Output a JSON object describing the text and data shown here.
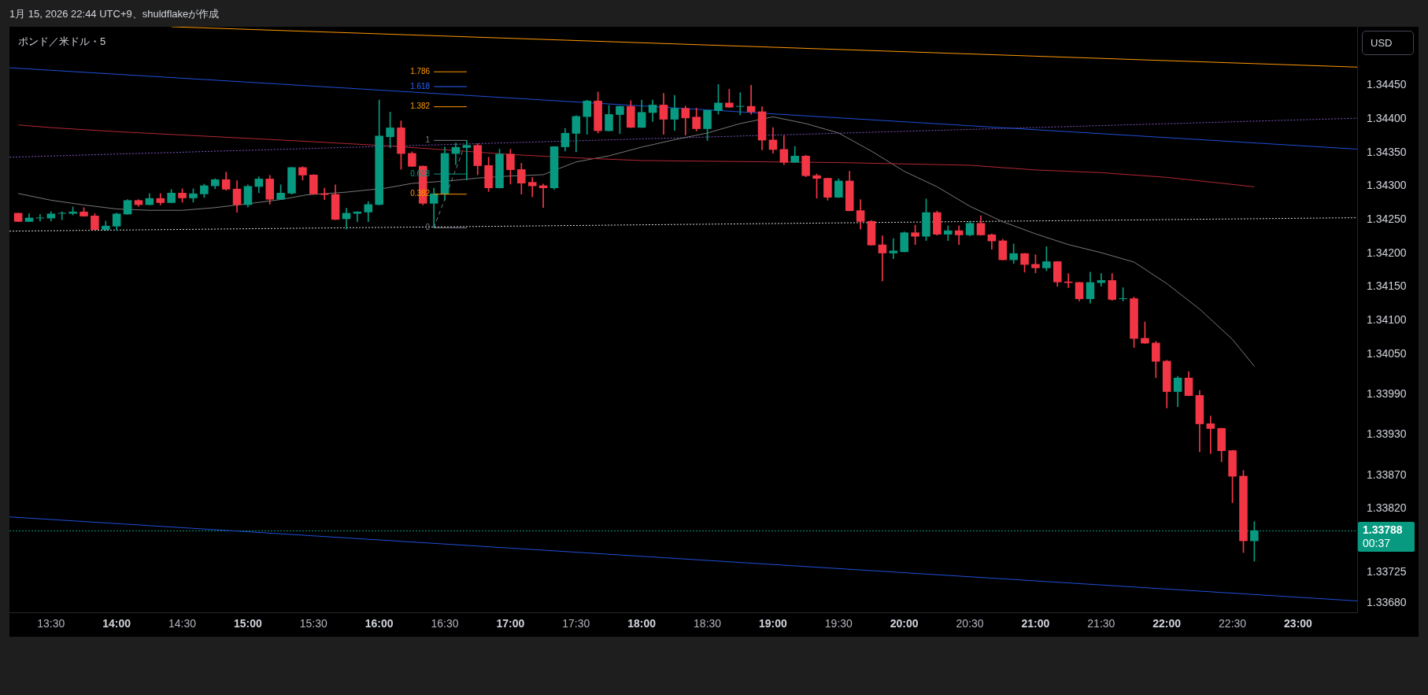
{
  "chart_data": {
    "type": "candlestick",
    "title": "ポンド／米ドル・5",
    "ylabel": "USD",
    "annotations": [
      "1月 15, 2026 22:44 UTC+9、shuldflakeが作成",
      "00:37"
    ],
    "xlim": [
      "2026-01-15T13:11",
      "2026-01-15T23:27"
    ],
    "ylim": [
      1.33666,
      1.34537
    ],
    "xticks": [
      {
        "value": "2026-01-15T13:30",
        "label": "13:30"
      },
      {
        "value": "2026-01-15T14:00",
        "label": "14:00"
      },
      {
        "value": "2026-01-15T14:30",
        "label": "14:30"
      },
      {
        "value": "2026-01-15T15:00",
        "label": "15:00"
      },
      {
        "value": "2026-01-15T15:30",
        "label": "15:30"
      },
      {
        "value": "2026-01-15T16:00",
        "label": "16:00"
      },
      {
        "value": "2026-01-15T16:30",
        "label": "16:30"
      },
      {
        "value": "2026-01-15T17:00",
        "label": "17:00"
      },
      {
        "value": "2026-01-15T17:30",
        "label": "17:30"
      },
      {
        "value": "2026-01-15T18:00",
        "label": "18:00"
      },
      {
        "value": "2026-01-15T18:30",
        "label": "18:30"
      },
      {
        "value": "2026-01-15T19:00",
        "label": "19:00"
      },
      {
        "value": "2026-01-15T19:30",
        "label": "19:30"
      },
      {
        "value": "2026-01-15T20:00",
        "label": "20:00"
      },
      {
        "value": "2026-01-15T20:30",
        "label": "20:30"
      },
      {
        "value": "2026-01-15T21:00",
        "label": "21:00"
      },
      {
        "value": "2026-01-15T21:30",
        "label": "21:30"
      },
      {
        "value": "2026-01-15T22:00",
        "label": "22:00"
      },
      {
        "value": "2026-01-15T22:30",
        "label": "22:30"
      },
      {
        "value": "2026-01-15T23:00",
        "label": "23:00"
      }
    ],
    "yticks": [
      {
        "value": 1.3445,
        "label": "1.34450"
      },
      {
        "value": 1.344,
        "label": "1.34400"
      },
      {
        "value": 1.3435,
        "label": "1.34350"
      },
      {
        "value": 1.343,
        "label": "1.34300"
      },
      {
        "value": 1.3425,
        "label": "1.34250"
      },
      {
        "value": 1.342,
        "label": "1.34200"
      },
      {
        "value": 1.3415,
        "label": "1.34150"
      },
      {
        "value": 1.341,
        "label": "1.34100"
      },
      {
        "value": 1.3405,
        "label": "1.34050"
      },
      {
        "value": 1.3399,
        "label": "1.33990"
      },
      {
        "value": 1.3393,
        "label": "1.33930"
      },
      {
        "value": 1.3387,
        "label": "1.33870"
      },
      {
        "value": 1.3382,
        "label": "1.33820"
      },
      {
        "value": 1.33725,
        "label": "1.33725"
      },
      {
        "value": 1.3368,
        "label": "1.33680"
      }
    ],
    "x": [
      "2026-01-15T13:15",
      "2026-01-15T13:20",
      "2026-01-15T13:25",
      "2026-01-15T13:30",
      "2026-01-15T13:35",
      "2026-01-15T13:40",
      "2026-01-15T13:45",
      "2026-01-15T13:50",
      "2026-01-15T13:55",
      "2026-01-15T14:00",
      "2026-01-15T14:05",
      "2026-01-15T14:10",
      "2026-01-15T14:15",
      "2026-01-15T14:20",
      "2026-01-15T14:25",
      "2026-01-15T14:30",
      "2026-01-15T14:35",
      "2026-01-15T14:40",
      "2026-01-15T14:45",
      "2026-01-15T14:50",
      "2026-01-15T14:55",
      "2026-01-15T15:00",
      "2026-01-15T15:05",
      "2026-01-15T15:10",
      "2026-01-15T15:15",
      "2026-01-15T15:20",
      "2026-01-15T15:25",
      "2026-01-15T15:30",
      "2026-01-15T15:35",
      "2026-01-15T15:40",
      "2026-01-15T15:45",
      "2026-01-15T15:50",
      "2026-01-15T15:55",
      "2026-01-15T16:00",
      "2026-01-15T16:05",
      "2026-01-15T16:10",
      "2026-01-15T16:15",
      "2026-01-15T16:20",
      "2026-01-15T16:25",
      "2026-01-15T16:30",
      "2026-01-15T16:35",
      "2026-01-15T16:40",
      "2026-01-15T16:45",
      "2026-01-15T16:50",
      "2026-01-15T16:55",
      "2026-01-15T17:00",
      "2026-01-15T17:05",
      "2026-01-15T17:10",
      "2026-01-15T17:15",
      "2026-01-15T17:20",
      "2026-01-15T17:25",
      "2026-01-15T17:30",
      "2026-01-15T17:35",
      "2026-01-15T17:40",
      "2026-01-15T17:45",
      "2026-01-15T17:50",
      "2026-01-15T17:55",
      "2026-01-15T18:00",
      "2026-01-15T18:05",
      "2026-01-15T18:10",
      "2026-01-15T18:15",
      "2026-01-15T18:20",
      "2026-01-15T18:25",
      "2026-01-15T18:30",
      "2026-01-15T18:35",
      "2026-01-15T18:40",
      "2026-01-15T18:45",
      "2026-01-15T18:50",
      "2026-01-15T18:55",
      "2026-01-15T19:00",
      "2026-01-15T19:05",
      "2026-01-15T19:10",
      "2026-01-15T19:15",
      "2026-01-15T19:20",
      "2026-01-15T19:25",
      "2026-01-15T19:30",
      "2026-01-15T19:35",
      "2026-01-15T19:40",
      "2026-01-15T19:45",
      "2026-01-15T19:50",
      "2026-01-15T19:55",
      "2026-01-15T20:00",
      "2026-01-15T20:05",
      "2026-01-15T20:10",
      "2026-01-15T20:15",
      "2026-01-15T20:20",
      "2026-01-15T20:25",
      "2026-01-15T20:30",
      "2026-01-15T20:35",
      "2026-01-15T20:40",
      "2026-01-15T20:45",
      "2026-01-15T20:50",
      "2026-01-15T20:55",
      "2026-01-15T21:00",
      "2026-01-15T21:05",
      "2026-01-15T21:10",
      "2026-01-15T21:15",
      "2026-01-15T21:20",
      "2026-01-15T21:25",
      "2026-01-15T21:30",
      "2026-01-15T21:35",
      "2026-01-15T21:40",
      "2026-01-15T21:45",
      "2026-01-15T21:50",
      "2026-01-15T21:55",
      "2026-01-15T22:00",
      "2026-01-15T22:05",
      "2026-01-15T22:10",
      "2026-01-15T22:15",
      "2026-01-15T22:20",
      "2026-01-15T22:25",
      "2026-01-15T22:30",
      "2026-01-15T22:35",
      "2026-01-15T22:40"
    ],
    "ohlc": [
      [
        1.3426,
        1.3426,
        1.34247,
        1.34247
      ],
      [
        1.34247,
        1.34259,
        1.34247,
        1.34253
      ],
      [
        1.34252,
        1.34258,
        1.34248,
        1.34253
      ],
      [
        1.34252,
        1.34262,
        1.34248,
        1.34259
      ],
      [
        1.34259,
        1.34262,
        1.3425,
        1.3426
      ],
      [
        1.34259,
        1.34269,
        1.34257,
        1.34262
      ],
      [
        1.34262,
        1.34268,
        1.34255,
        1.34255
      ],
      [
        1.34256,
        1.34259,
        1.34235,
        1.34235
      ],
      [
        1.34235,
        1.34248,
        1.34234,
        1.34241
      ],
      [
        1.3424,
        1.3426,
        1.34234,
        1.34259
      ],
      [
        1.34258,
        1.3428,
        1.34258,
        1.34279
      ],
      [
        1.34279,
        1.3428,
        1.3427,
        1.34272
      ],
      [
        1.34272,
        1.34289,
        1.34272,
        1.34282
      ],
      [
        1.34282,
        1.34289,
        1.34272,
        1.34275
      ],
      [
        1.34275,
        1.34295,
        1.34275,
        1.3429
      ],
      [
        1.3429,
        1.34296,
        1.34276,
        1.34282
      ],
      [
        1.34282,
        1.34296,
        1.34276,
        1.34289
      ],
      [
        1.34288,
        1.34303,
        1.34283,
        1.34301
      ],
      [
        1.343,
        1.34311,
        1.34296,
        1.3431
      ],
      [
        1.3431,
        1.34321,
        1.34294,
        1.34295
      ],
      [
        1.34296,
        1.34308,
        1.34261,
        1.34272
      ],
      [
        1.34272,
        1.34302,
        1.34269,
        1.343
      ],
      [
        1.34299,
        1.34314,
        1.3429,
        1.34311
      ],
      [
        1.34311,
        1.34316,
        1.34273,
        1.3428
      ],
      [
        1.3428,
        1.34302,
        1.3428,
        1.3429
      ],
      [
        1.34289,
        1.34328,
        1.34288,
        1.34328
      ],
      [
        1.34328,
        1.34329,
        1.34309,
        1.34316
      ],
      [
        1.34317,
        1.34317,
        1.34288,
        1.34288
      ],
      [
        1.34289,
        1.34297,
        1.3428,
        1.34287
      ],
      [
        1.34288,
        1.34302,
        1.3425,
        1.3425
      ],
      [
        1.34251,
        1.34267,
        1.34236,
        1.3426
      ],
      [
        1.34259,
        1.34262,
        1.34247,
        1.34262
      ],
      [
        1.34261,
        1.34277,
        1.34247,
        1.34273
      ],
      [
        1.34272,
        1.34428,
        1.34272,
        1.34375
      ],
      [
        1.34373,
        1.3441,
        1.34357,
        1.34387
      ],
      [
        1.34387,
        1.34397,
        1.34325,
        1.34348
      ],
      [
        1.34349,
        1.34351,
        1.34329,
        1.34329
      ],
      [
        1.3433,
        1.3433,
        1.34272,
        1.34274
      ],
      [
        1.34274,
        1.34297,
        1.34238,
        1.34289
      ],
      [
        1.34288,
        1.34358,
        1.34279,
        1.34349
      ],
      [
        1.34348,
        1.34364,
        1.34332,
        1.34358
      ],
      [
        1.34357,
        1.34368,
        1.34309,
        1.34361
      ],
      [
        1.34361,
        1.34363,
        1.34317,
        1.3433
      ],
      [
        1.34331,
        1.34343,
        1.34292,
        1.34297
      ],
      [
        1.34297,
        1.34355,
        1.34297,
        1.34348
      ],
      [
        1.34348,
        1.34355,
        1.34303,
        1.34324
      ],
      [
        1.34325,
        1.34334,
        1.34288,
        1.34304
      ],
      [
        1.34306,
        1.34313,
        1.34284,
        1.343
      ],
      [
        1.34301,
        1.34303,
        1.34268,
        1.34297
      ],
      [
        1.34297,
        1.34359,
        1.34295,
        1.34359
      ],
      [
        1.34358,
        1.34386,
        1.34352,
        1.34379
      ],
      [
        1.34378,
        1.34405,
        1.34351,
        1.34404
      ],
      [
        1.34403,
        1.34428,
        1.34377,
        1.34427
      ],
      [
        1.34427,
        1.3444,
        1.34379,
        1.34382
      ],
      [
        1.34382,
        1.3442,
        1.34382,
        1.34407
      ],
      [
        1.34406,
        1.34419,
        1.34378,
        1.34419
      ],
      [
        1.34419,
        1.34427,
        1.34387,
        1.34387
      ],
      [
        1.34387,
        1.34428,
        1.34387,
        1.3441
      ],
      [
        1.34409,
        1.34428,
        1.34396,
        1.34421
      ],
      [
        1.34421,
        1.34438,
        1.34377,
        1.34399
      ],
      [
        1.34399,
        1.34435,
        1.34383,
        1.34416
      ],
      [
        1.34416,
        1.34419,
        1.34376,
        1.34401
      ],
      [
        1.34403,
        1.34416,
        1.34382,
        1.34385
      ],
      [
        1.34385,
        1.34413,
        1.34368,
        1.34413
      ],
      [
        1.34412,
        1.34451,
        1.34407,
        1.34424
      ],
      [
        1.34424,
        1.34444,
        1.34417,
        1.34417
      ],
      [
        1.34418,
        1.34439,
        1.34406,
        1.34419
      ],
      [
        1.34419,
        1.3445,
        1.34407,
        1.3441
      ],
      [
        1.34411,
        1.34418,
        1.34354,
        1.34368
      ],
      [
        1.34369,
        1.34387,
        1.34349,
        1.34354
      ],
      [
        1.34355,
        1.34375,
        1.34332,
        1.34335
      ],
      [
        1.34335,
        1.34359,
        1.34335,
        1.34345
      ],
      [
        1.34345,
        1.34346,
        1.34314,
        1.34315
      ],
      [
        1.34316,
        1.34318,
        1.34282,
        1.34311
      ],
      [
        1.34312,
        1.34312,
        1.34279,
        1.34283
      ],
      [
        1.34283,
        1.34311,
        1.34283,
        1.34308
      ],
      [
        1.34308,
        1.34322,
        1.34263,
        1.34263
      ],
      [
        1.34264,
        1.3428,
        1.34236,
        1.34247
      ],
      [
        1.34248,
        1.34249,
        1.34212,
        1.34212
      ],
      [
        1.34213,
        1.34226,
        1.34159,
        1.342
      ],
      [
        1.342,
        1.34222,
        1.34192,
        1.34204
      ],
      [
        1.34202,
        1.34232,
        1.34202,
        1.34231
      ],
      [
        1.34231,
        1.34242,
        1.34213,
        1.34225
      ],
      [
        1.34225,
        1.34281,
        1.34219,
        1.34261
      ],
      [
        1.34261,
        1.34263,
        1.34227,
        1.34228
      ],
      [
        1.34228,
        1.34241,
        1.34219,
        1.34234
      ],
      [
        1.34234,
        1.34241,
        1.34213,
        1.34227
      ],
      [
        1.34227,
        1.34248,
        1.34226,
        1.34245
      ],
      [
        1.34245,
        1.34256,
        1.34227,
        1.34227
      ],
      [
        1.34228,
        1.34229,
        1.34206,
        1.34218
      ],
      [
        1.34219,
        1.34221,
        1.3419,
        1.3419
      ],
      [
        1.3419,
        1.34214,
        1.34185,
        1.342
      ],
      [
        1.342,
        1.342,
        1.34172,
        1.34183
      ],
      [
        1.34184,
        1.34198,
        1.34171,
        1.34178
      ],
      [
        1.34178,
        1.3421,
        1.34174,
        1.34188
      ],
      [
        1.34188,
        1.34188,
        1.34151,
        1.34157
      ],
      [
        1.34158,
        1.3417,
        1.34149,
        1.34156
      ],
      [
        1.34157,
        1.34157,
        1.34129,
        1.34132
      ],
      [
        1.34132,
        1.34172,
        1.34126,
        1.34157
      ],
      [
        1.34156,
        1.3417,
        1.34151,
        1.3416
      ],
      [
        1.3416,
        1.3417,
        1.3413,
        1.34131
      ],
      [
        1.34132,
        1.34149,
        1.34129,
        1.34133
      ],
      [
        1.34133,
        1.34135,
        1.3406,
        1.34073
      ],
      [
        1.34074,
        1.34098,
        1.34066,
        1.34066
      ],
      [
        1.34067,
        1.34069,
        1.34015,
        1.34039
      ],
      [
        1.3404,
        1.34041,
        1.3397,
        1.33994
      ],
      [
        1.33994,
        1.34017,
        1.33972,
        1.34015
      ],
      [
        1.34015,
        1.34024,
        1.33988,
        1.33988
      ],
      [
        1.33989,
        1.33996,
        1.33905,
        1.33946
      ],
      [
        1.33947,
        1.33958,
        1.33902,
        1.33939
      ],
      [
        1.3394,
        1.3394,
        1.3389,
        1.33906
      ],
      [
        1.33907,
        1.33907,
        1.33829,
        1.33868
      ],
      [
        1.33869,
        1.33877,
        1.33755,
        1.33772
      ],
      [
        1.33772,
        1.33801,
        1.33742,
        1.33788
      ]
    ],
    "colors": [
      "#f23645",
      "#089981",
      "#089981",
      "#089981",
      "#089981",
      "#089981",
      "#f23645",
      "#f23645",
      "#089981",
      "#089981",
      "#089981",
      "#f23645",
      "#089981",
      "#f23645",
      "#089981",
      "#f23645",
      "#089981",
      "#089981",
      "#089981",
      "#f23645",
      "#f23645",
      "#089981",
      "#089981",
      "#f23645",
      "#089981",
      "#089981",
      "#f23645",
      "#f23645",
      "#f23645",
      "#f23645",
      "#089981",
      "#089981",
      "#089981",
      "#089981",
      "#089981",
      "#f23645",
      "#f23645",
      "#f23645",
      "#089981",
      "#089981",
      "#089981",
      "#089981",
      "#f23645",
      "#f23645",
      "#089981",
      "#f23645",
      "#f23645",
      "#f23645",
      "#f23645",
      "#089981",
      "#089981",
      "#089981",
      "#089981",
      "#f23645",
      "#089981",
      "#089981",
      "#f23645",
      "#089981",
      "#089981",
      "#f23645",
      "#089981",
      "#f23645",
      "#f23645",
      "#089981",
      "#089981",
      "#f23645",
      "#089981",
      "#f23645",
      "#f23645",
      "#f23645",
      "#f23645",
      "#089981",
      "#f23645",
      "#f23645",
      "#f23645",
      "#089981",
      "#f23645",
      "#f23645",
      "#f23645",
      "#f23645",
      "#089981",
      "#089981",
      "#f23645",
      "#089981",
      "#f23645",
      "#089981",
      "#f23645",
      "#089981",
      "#f23645",
      "#f23645",
      "#f23645",
      "#089981",
      "#f23645",
      "#f23645",
      "#089981",
      "#f23645",
      "#f23645",
      "#f23645",
      "#089981",
      "#089981",
      "#f23645",
      "#089981",
      "#f23645",
      "#f23645",
      "#f23645",
      "#f23645",
      "#089981",
      "#f23645",
      "#f23645",
      "#f23645",
      "#f23645",
      "#f23645",
      "#f23645",
      "#089981"
    ],
    "series": [
      {
        "type": "line",
        "color": "#b22833",
        "x": [
          "2026-01-15T13:15",
          "2026-01-15T13:30",
          "2026-01-15T14:00",
          "2026-01-15T14:30",
          "2026-01-15T15:00",
          "2026-01-15T15:30",
          "2026-01-15T16:03",
          "2026-01-15T16:30",
          "2026-01-15T17:00",
          "2026-01-15T17:30",
          "2026-01-15T18:00",
          "2026-01-15T18:30",
          "2026-01-15T19:00",
          "2026-01-15T19:30",
          "2026-01-15T20:00",
          "2026-01-15T20:30",
          "2026-01-15T21:00",
          "2026-01-15T21:30",
          "2026-01-15T22:00",
          "2026-01-15T22:20",
          "2026-01-15T22:40"
        ],
        "values": [
          1.34391,
          1.34387,
          1.34381,
          1.34376,
          1.34371,
          1.34366,
          1.3436,
          1.34354,
          1.34347,
          1.34342,
          1.34338,
          1.34337,
          1.34336,
          1.34335,
          1.34333,
          1.34331,
          1.34324,
          1.3432,
          1.34313,
          1.34306,
          1.34299
        ]
      },
      {
        "type": "line",
        "color": "#787878",
        "x": [
          "2026-01-15T13:15",
          "2026-01-15T13:30",
          "2026-01-15T13:45",
          "2026-01-15T14:00",
          "2026-01-15T14:15",
          "2026-01-15T14:30",
          "2026-01-15T14:45",
          "2026-01-15T15:03",
          "2026-01-15T15:15",
          "2026-01-15T15:27",
          "2026-01-15T15:45",
          "2026-01-15T16:03",
          "2026-01-15T16:15",
          "2026-01-15T16:33",
          "2026-01-15T16:45",
          "2026-01-15T17:00",
          "2026-01-15T17:15",
          "2026-01-15T17:30",
          "2026-01-15T17:45",
          "2026-01-15T18:00",
          "2026-01-15T18:15",
          "2026-01-15T18:30",
          "2026-01-15T18:45",
          "2026-01-15T19:00",
          "2026-01-15T19:15",
          "2026-01-15T19:30",
          "2026-01-15T19:45",
          "2026-01-15T20:00",
          "2026-01-15T20:15",
          "2026-01-15T20:30",
          "2026-01-15T20:45",
          "2026-01-15T21:00",
          "2026-01-15T21:15",
          "2026-01-15T21:30",
          "2026-01-15T21:45",
          "2026-01-15T22:00",
          "2026-01-15T22:15",
          "2026-01-15T22:30",
          "2026-01-15T22:40"
        ],
        "values": [
          1.34289,
          1.34279,
          1.34272,
          1.34266,
          1.34264,
          1.34264,
          1.34268,
          1.34275,
          1.3428,
          1.34287,
          1.34291,
          1.34297,
          1.34304,
          1.34308,
          1.34312,
          1.34315,
          1.34317,
          1.34336,
          1.34345,
          1.34358,
          1.34369,
          1.34379,
          1.34393,
          1.34403,
          1.34393,
          1.34379,
          1.34352,
          1.34322,
          1.34299,
          1.3427,
          1.34247,
          1.34229,
          1.34213,
          1.34201,
          1.34187,
          1.34155,
          1.34117,
          1.34072,
          1.34032
        ]
      },
      {
        "type": "line",
        "color": "#ff9800",
        "x": [
          "2026-01-15T14:25",
          "2026-01-15T23:27"
        ],
        "values": [
          1.34537,
          1.34477
        ]
      },
      {
        "type": "line",
        "color": "#1f4fd8",
        "x": [
          "2026-01-15T13:11",
          "2026-01-15T23:27"
        ],
        "values": [
          1.34476,
          1.34355
        ]
      },
      {
        "type": "line",
        "color": "#1f4fd8",
        "x": [
          "2026-01-15T13:11",
          "2026-01-15T23:27"
        ],
        "values": [
          1.33808,
          1.33683
        ]
      },
      {
        "type": "line",
        "color": "#7e57c2",
        "line_style": "dotted",
        "x": [
          "2026-01-15T13:11",
          "2026-01-15T23:27"
        ],
        "values": [
          1.34343,
          1.34401
        ]
      },
      {
        "type": "line",
        "color": "#d8d8d8",
        "line_style": "dotted",
        "x": [
          "2026-01-15T13:11",
          "2026-01-15T23:27"
        ],
        "values": [
          1.34233,
          1.34253
        ]
      },
      {
        "type": "line",
        "name": "1.786",
        "color": "#ff9800",
        "x": [
          "2026-01-15T16:25",
          "2026-01-15T16:40"
        ],
        "values": [
          1.3447,
          1.3447
        ]
      },
      {
        "type": "line",
        "name": "1.618",
        "color": "#2962ff",
        "x": [
          "2026-01-15T16:25",
          "2026-01-15T16:40"
        ],
        "values": [
          1.34448,
          1.34448
        ]
      },
      {
        "type": "line",
        "name": "1.382",
        "color": "#ff9800",
        "x": [
          "2026-01-15T16:25",
          "2026-01-15T16:40"
        ],
        "values": [
          1.34418,
          1.34418
        ]
      },
      {
        "type": "line",
        "name": "1",
        "color": "#787b86",
        "x": [
          "2026-01-15T16:25",
          "2026-01-15T16:40"
        ],
        "values": [
          1.34368,
          1.34368
        ]
      },
      {
        "type": "line",
        "name": "0.618",
        "color": "#089981",
        "x": [
          "2026-01-15T16:25",
          "2026-01-15T16:40"
        ],
        "values": [
          1.34318,
          1.34318
        ]
      },
      {
        "type": "line",
        "name": "0.382",
        "color": "#ff9800",
        "x": [
          "2026-01-15T16:25",
          "2026-01-15T16:40"
        ],
        "values": [
          1.34288,
          1.34288
        ]
      },
      {
        "type": "line",
        "name": "0",
        "color": "#787b86",
        "x": [
          "2026-01-15T16:25",
          "2026-01-15T16:40"
        ],
        "values": [
          1.34238,
          1.34238
        ]
      },
      {
        "type": "line",
        "color": "#787b86",
        "line_style": "dashed",
        "x": [
          "2026-01-15T16:25",
          "2026-01-15T16:40"
        ],
        "values": [
          1.34238,
          1.34368
        ]
      }
    ],
    "ref_lines": [
      {
        "axis": "y",
        "value": 1.33788,
        "label": "1.33788",
        "color": "#089981",
        "line_style": "dotted"
      }
    ]
  }
}
